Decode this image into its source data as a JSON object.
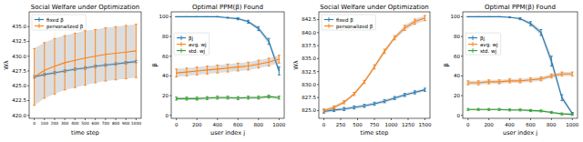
{
  "chart_data": [
    {
      "type": "line",
      "title": "Social Welfare under Optimization",
      "x_label": "time step",
      "y_label": "Wλ",
      "x": [
        0,
        100,
        200,
        300,
        400,
        500,
        600,
        700,
        800,
        900,
        1000
      ],
      "xlim": [
        -50,
        1050
      ],
      "xticks": [
        0,
        100,
        200,
        300,
        400,
        500,
        600,
        700,
        800,
        900,
        1000
      ],
      "ylim": [
        419.5,
        437.5
      ],
      "yticks": [
        {
          "value": 420,
          "label": "420.0"
        },
        {
          "value": 422.5,
          "label": "422.5"
        },
        {
          "value": 425,
          "label": "425.0"
        },
        {
          "value": 427.5,
          "label": "427.5"
        },
        {
          "value": 430,
          "label": "430.0"
        },
        {
          "value": 432.5,
          "label": "432.5"
        },
        {
          "value": 435,
          "label": "435.0"
        }
      ],
      "legend": "upper left",
      "series": [
        {
          "name": "fixed β",
          "color": "#1f77b4",
          "values": [
            426.5,
            426.9,
            427.2,
            427.5,
            427.8,
            428.0,
            428.3,
            428.5,
            428.7,
            428.9,
            429.1
          ],
          "error": [
            0.2,
            0.2,
            0.2,
            0.2,
            0.2,
            0.2,
            0.2,
            0.2,
            0.2,
            0.2,
            0.2
          ]
        },
        {
          "name": "personalized β",
          "color": "#ff7f0e",
          "values": [
            426.5,
            427.6,
            428.3,
            428.9,
            429.3,
            429.7,
            430.0,
            430.3,
            430.5,
            430.7,
            430.9
          ],
          "error": [
            4.8,
            4.7,
            4.7,
            4.6,
            4.6,
            4.6,
            4.5,
            4.5,
            4.5,
            4.5,
            4.5
          ]
        }
      ]
    },
    {
      "type": "line",
      "title": "Optimal PPM(β) Found",
      "x_label": "user index j",
      "y_label": "β",
      "x": [
        0,
        100,
        200,
        300,
        400,
        500,
        600,
        700,
        800,
        900,
        1000
      ],
      "xlim": [
        -50,
        1050
      ],
      "xticks": [
        0,
        200,
        400,
        600,
        800,
        1000
      ],
      "ylim": [
        -3,
        105
      ],
      "yticks": [
        0,
        20,
        40,
        60,
        80,
        100
      ],
      "legend": "center left",
      "series": [
        {
          "name": "βj",
          "color": "#1f77b4",
          "values": [
            100,
            100,
            100,
            100,
            100,
            99,
            98,
            95,
            88,
            75,
            45
          ],
          "error": [
            0,
            0,
            0,
            0,
            0.2,
            0.5,
            1,
            1.5,
            2,
            3,
            4
          ]
        },
        {
          "name": "avg. wj",
          "color": "#ff7f0e",
          "values": [
            43,
            44,
            45,
            46,
            47,
            48,
            49,
            50,
            52,
            54,
            57
          ],
          "error": [
            4,
            4,
            4,
            4,
            4,
            4,
            4,
            4,
            4,
            4,
            4
          ]
        },
        {
          "name": "std. wj",
          "color": "#2ca02c",
          "values": [
            17,
            17,
            17,
            17.5,
            18,
            18,
            17.5,
            18,
            18,
            19,
            18
          ],
          "error": [
            1.5,
            1.5,
            1.5,
            1.5,
            1.5,
            1.5,
            1.5,
            1.5,
            1.5,
            1.5,
            1.5
          ]
        }
      ]
    },
    {
      "type": "line",
      "title": "Social Welfare under Optimization",
      "x_label": "time step",
      "y_label": "Wλ",
      "x": [
        0,
        150,
        300,
        450,
        600,
        750,
        900,
        1050,
        1200,
        1350,
        1500
      ],
      "xlim": [
        -75,
        1575
      ],
      "xticks": [
        0,
        250,
        500,
        750,
        1000,
        1250,
        1500
      ],
      "ylim": [
        823.5,
        844
      ],
      "yticks": [
        {
          "value": 825,
          "label": "825.0"
        },
        {
          "value": 827.5,
          "label": "827.5"
        },
        {
          "value": 830,
          "label": "830.0"
        },
        {
          "value": 832.5,
          "label": "832.5"
        },
        {
          "value": 835,
          "label": "835.0"
        },
        {
          "value": 837.5,
          "label": "837.5"
        },
        {
          "value": 840,
          "label": "840.0"
        },
        {
          "value": 842.5,
          "label": "842.5"
        }
      ],
      "legend": "upper left",
      "series": [
        {
          "name": "fixed β",
          "color": "#1f77b4",
          "values": [
            824.8,
            825.1,
            825.3,
            825.6,
            825.9,
            826.3,
            826.8,
            827.4,
            828.0,
            828.5,
            829.0
          ],
          "error": [
            0.3,
            0.3,
            0.3,
            0.3,
            0.3,
            0.3,
            0.3,
            0.3,
            0.3,
            0.3,
            0.3
          ]
        },
        {
          "name": "personalized β",
          "color": "#ff7f0e",
          "values": [
            825.0,
            825.6,
            826.6,
            828.2,
            830.5,
            833.4,
            836.4,
            839.0,
            840.9,
            842.1,
            842.8
          ],
          "error": [
            0.3,
            0.3,
            0.3,
            0.3,
            0.3,
            0.4,
            0.4,
            0.4,
            0.5,
            0.5,
            0.5
          ]
        }
      ]
    },
    {
      "type": "line",
      "title": "Optimal PPM(β) Found",
      "x_label": "user index j",
      "y_label": "β",
      "x": [
        0,
        100,
        200,
        300,
        400,
        500,
        600,
        700,
        800,
        900,
        1000
      ],
      "xlim": [
        -50,
        1050
      ],
      "xticks": [
        0,
        200,
        400,
        600,
        800,
        1000
      ],
      "ylim": [
        -3,
        105
      ],
      "yticks": [
        0,
        20,
        40,
        60,
        80,
        100
      ],
      "legend": "center left",
      "series": [
        {
          "name": "βj",
          "color": "#1f77b4",
          "values": [
            100,
            100,
            100,
            100,
            99.5,
            98,
            93,
            84,
            55,
            18,
            2
          ],
          "error": [
            0,
            0,
            0,
            0,
            0.5,
            1,
            2,
            3,
            5,
            3,
            1
          ]
        },
        {
          "name": "avg. wj",
          "color": "#ff7f0e",
          "values": [
            33,
            33,
            34,
            34,
            35,
            35,
            36,
            37,
            40,
            42,
            42
          ],
          "error": [
            2,
            2,
            2,
            2,
            2,
            2,
            2,
            2,
            2,
            2,
            2
          ]
        },
        {
          "name": "std. wj",
          "color": "#2ca02c",
          "values": [
            6,
            6,
            6,
            6,
            5.5,
            5.5,
            5,
            4.5,
            3,
            1.5,
            1
          ],
          "error": [
            1,
            1,
            1,
            1,
            1,
            1,
            1,
            1,
            1,
            1,
            1
          ]
        }
      ]
    }
  ]
}
